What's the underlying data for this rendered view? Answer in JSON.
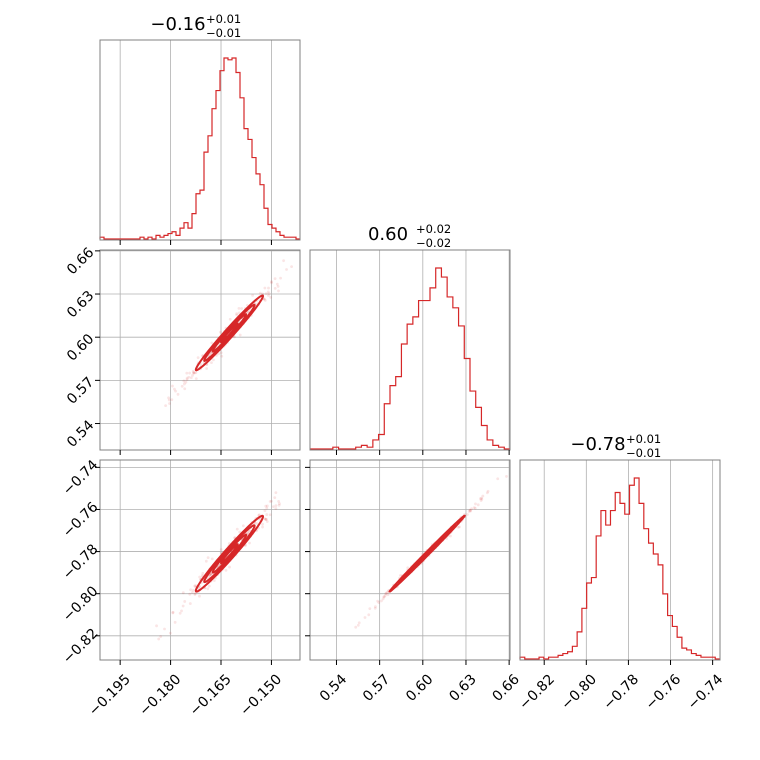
{
  "chart_data": {
    "type": "corner",
    "color": "#d62728",
    "params": [
      {
        "title": {
          "value": "−0.16",
          "plus": "+0.01",
          "minus": "−0.01"
        },
        "range": [
          -0.201,
          -0.1415
        ],
        "ticks": [
          -0.195,
          -0.18,
          -0.165,
          -0.15
        ],
        "tick_labels": [
          "−0.195",
          "−0.180",
          "−0.165",
          "−0.150"
        ],
        "center": -0.1625,
        "sigma": 0.005
      },
      {
        "title": {
          "value": "0.60",
          "plus": "+0.02",
          "minus": "−0.02"
        },
        "range": [
          0.5216,
          0.6606
        ],
        "ticks": [
          0.54,
          0.57,
          0.6,
          0.63,
          0.66
        ],
        "tick_labels": [
          "0.54",
          "0.57",
          "0.60",
          "0.63",
          "0.66"
        ],
        "center": 0.603,
        "sigma": 0.013
      },
      {
        "title": {
          "value": "−0.78",
          "plus": "+0.01",
          "minus": "−0.01"
        },
        "range": [
          -0.8315,
          -0.7365
        ],
        "ticks": [
          -0.82,
          -0.8,
          -0.78,
          -0.76,
          -0.74
        ],
        "tick_labels": [
          "−0.82",
          "−0.80",
          "−0.78",
          "−0.76",
          "−0.74"
        ],
        "center": -0.781,
        "sigma": 0.009
      }
    ],
    "histograms": [
      {
        "param": 0,
        "edges": [
          -0.201,
          -0.1415
        ],
        "heights": [
          0.01,
          0,
          0,
          0,
          0,
          0,
          0,
          0,
          0,
          0,
          0.01,
          0,
          0.01,
          0,
          0.02,
          0.01,
          0.02,
          0.03,
          0.04,
          0.02,
          0.06,
          0.09,
          0.06,
          0.14,
          0.25,
          0.27,
          0.48,
          0.57,
          0.72,
          0.82,
          0.93,
          1.0,
          0.99,
          1.0,
          0.92,
          0.78,
          0.61,
          0.55,
          0.45,
          0.36,
          0.3,
          0.17,
          0.08,
          0.06,
          0.04,
          0.02,
          0.01,
          0.01,
          0.01,
          0.0
        ]
      },
      {
        "param": 1,
        "edges": [
          0.5216,
          0.6606
        ],
        "heights": [
          0,
          0,
          0,
          0,
          0.01,
          0,
          0,
          0,
          0.01,
          0.02,
          0.01,
          0.05,
          0.08,
          0.25,
          0.35,
          0.4,
          0.58,
          0.69,
          0.73,
          0.82,
          0.82,
          0.89,
          1.0,
          0.95,
          0.84,
          0.78,
          0.68,
          0.5,
          0.32,
          0.23,
          0.13,
          0.05,
          0.02,
          0.01,
          0.0
        ]
      },
      {
        "param": 2,
        "edges": [
          -0.8315,
          -0.7365
        ],
        "heights": [
          0.01,
          0,
          0,
          0,
          0.01,
          0,
          0.01,
          0.01,
          0.02,
          0.03,
          0.04,
          0.07,
          0.15,
          0.28,
          0.42,
          0.45,
          0.68,
          0.82,
          0.74,
          0.82,
          0.92,
          0.86,
          0.8,
          0.96,
          1.0,
          0.86,
          0.72,
          0.64,
          0.58,
          0.52,
          0.36,
          0.24,
          0.18,
          0.12,
          0.06,
          0.05,
          0.03,
          0.02,
          0.01,
          0.01,
          0.01,
          0.0
        ]
      }
    ],
    "scatter_pairs": [
      {
        "x": 0,
        "y": 1,
        "correlation": 0.985
      },
      {
        "x": 0,
        "y": 2,
        "correlation": 0.98
      },
      {
        "x": 1,
        "y": 2,
        "correlation": 0.998
      }
    ]
  }
}
